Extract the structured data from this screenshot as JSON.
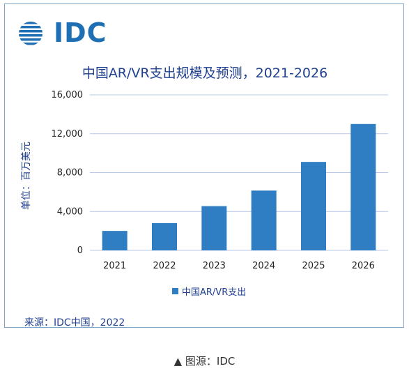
{
  "logo": {
    "text": "IDC"
  },
  "chart_data": {
    "type": "bar",
    "title": "中国AR/VR支出规模及预测，2021-2026",
    "ylabel": "单位：百万美元",
    "xlabel": "",
    "categories": [
      "2021",
      "2022",
      "2023",
      "2024",
      "2025",
      "2026"
    ],
    "series": [
      {
        "name": "中国AR/VR支出",
        "values": [
          2000,
          2800,
          4550,
          6150,
          9100,
          13000
        ]
      }
    ],
    "ylim": [
      0,
      16000
    ],
    "yticks": [
      0,
      4000,
      8000,
      12000,
      16000
    ],
    "ytick_labels": [
      "0",
      "4,000",
      "8,000",
      "12,000",
      "16,000"
    ],
    "grid": true,
    "legend_position": "bottom",
    "colors": {
      "bar": "#2f7dc3",
      "grid": "#b9c7e6"
    }
  },
  "source": "来源：IDC中国，2022",
  "caption": "▲ 图源：IDC"
}
